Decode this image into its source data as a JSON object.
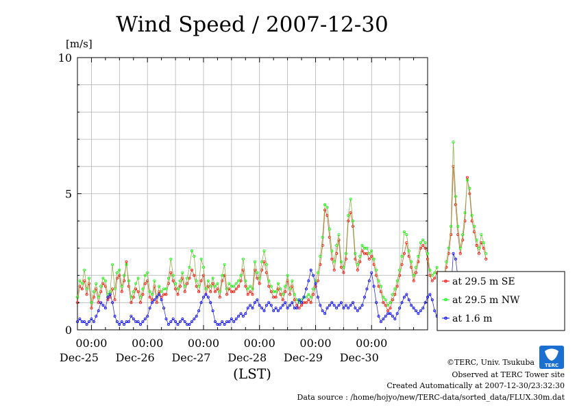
{
  "chart_data": {
    "type": "line",
    "title": "Wind Speed / 2007-12-30",
    "ylabel": "[m/s]",
    "xlabel": "(LST)",
    "ylim": [
      0,
      10
    ],
    "yticks": [
      "0",
      "5",
      "10"
    ],
    "x_ticks": [
      {
        "time": "00:00",
        "date": "Dec-25"
      },
      {
        "time": "00:00",
        "date": "Dec-26"
      },
      {
        "time": "00:00",
        "date": "Dec-27"
      },
      {
        "time": "00:00",
        "date": "Dec-28"
      },
      {
        "time": "00:00",
        "date": "Dec-29"
      },
      {
        "time": "00:00",
        "date": "Dec-30"
      }
    ],
    "x_range_days": [
      "Dec-24 18:00",
      "Dec-31 00:00"
    ],
    "legend_position": "right",
    "grid": true,
    "series": [
      {
        "name": "at 29.5 m SE",
        "color": "#ff0000",
        "marker": "open-circle",
        "x_start": "Dec-24 18:00",
        "step_hours": 1,
        "values": [
          1.0,
          1.6,
          1.5,
          1.8,
          1.3,
          1.7,
          0.8,
          1.2,
          1.5,
          1.0,
          1.4,
          1.7,
          1.6,
          1.1,
          1.2,
          1.5,
          1.1,
          1.9,
          2.0,
          1.4,
          1.8,
          2.5,
          1.6,
          1.0,
          1.2,
          1.5,
          1.4,
          1.0,
          1.3,
          1.7,
          1.8,
          1.2,
          1.1,
          1.6,
          1.0,
          1.4,
          1.2,
          1.3,
          1.3,
          1.7,
          2.1,
          1.8,
          1.5,
          1.3,
          1.6,
          1.9,
          1.4,
          1.7,
          1.9,
          2.2,
          2.0,
          1.6,
          1.4,
          1.8,
          2.0,
          1.3,
          1.6,
          1.4,
          1.7,
          1.4,
          1.5,
          1.2,
          1.8,
          2.0,
          1.3,
          1.5,
          1.4,
          1.4,
          1.5,
          1.6,
          1.8,
          2.2,
          1.6,
          1.3,
          1.4,
          1.3,
          2.2,
          1.9,
          1.7,
          2.2,
          2.5,
          2.1,
          1.6,
          1.4,
          1.2,
          1.2,
          1.5,
          1.3,
          1.1,
          1.4,
          1.8,
          1.3,
          1.6,
          1.1,
          0.9,
          0.8,
          0.9,
          1.0,
          1.0,
          1.1,
          1.0,
          1.3,
          1.6,
          1.8,
          2.4,
          3.1,
          4.4,
          4.2,
          3.4,
          2.6,
          2.2,
          2.8,
          3.3,
          2.3,
          2.1,
          2.6,
          4.0,
          4.3,
          3.8,
          2.6,
          2.2,
          2.5,
          2.9,
          2.8,
          2.8,
          2.6,
          2.7,
          2.4,
          2.0,
          1.6,
          1.4,
          1.0,
          0.9,
          0.7,
          0.8,
          1.1,
          1.3,
          1.6,
          2.0,
          2.4,
          2.8,
          3.2,
          2.7,
          2.3,
          1.8,
          2.1,
          2.5,
          3.0,
          3.1,
          3.0,
          2.6,
          2.0,
          1.8,
          1.9,
          2.1,
          1.5,
          1.3,
          1.8,
          2.3,
          2.8,
          3.5,
          6.0,
          4.6,
          3.5,
          2.8,
          3.3,
          4.0,
          5.6,
          5.0,
          4.0,
          3.6,
          3.1,
          2.8,
          3.2,
          3.0,
          2.6
        ]
      },
      {
        "name": "at 29.5 m NW",
        "color": "#00ff00",
        "marker": "open-circle",
        "x_start": "Dec-24 18:00",
        "step_hours": 1,
        "values": [
          1.2,
          1.8,
          1.7,
          2.2,
          1.5,
          1.9,
          1.0,
          1.4,
          1.7,
          1.2,
          1.6,
          1.9,
          1.8,
          1.3,
          1.4,
          2.4,
          1.5,
          2.1,
          2.2,
          1.6,
          2.0,
          2.4,
          1.8,
          1.2,
          1.4,
          1.7,
          1.9,
          1.2,
          1.5,
          2.0,
          2.1,
          1.4,
          1.3,
          1.8,
          1.2,
          1.6,
          1.4,
          1.5,
          1.5,
          1.9,
          2.6,
          2.0,
          1.7,
          1.5,
          1.8,
          2.1,
          1.6,
          1.9,
          2.3,
          2.9,
          2.7,
          1.8,
          1.6,
          2.6,
          2.3,
          1.5,
          1.8,
          1.6,
          1.9,
          1.6,
          1.7,
          1.4,
          2.0,
          2.4,
          1.5,
          1.7,
          1.6,
          1.6,
          1.7,
          1.8,
          2.0,
          2.6,
          1.8,
          1.5,
          1.6,
          1.5,
          2.5,
          2.1,
          1.9,
          2.5,
          2.9,
          2.4,
          1.8,
          1.6,
          1.4,
          1.4,
          1.7,
          1.5,
          1.3,
          1.6,
          2.0,
          1.5,
          1.8,
          1.3,
          1.1,
          1.0,
          1.1,
          1.2,
          1.2,
          1.3,
          1.2,
          1.5,
          1.8,
          2.1,
          2.7,
          3.4,
          4.6,
          4.5,
          3.7,
          2.9,
          2.5,
          3.1,
          3.5,
          2.5,
          2.3,
          2.8,
          4.2,
          4.8,
          4.0,
          2.8,
          2.4,
          2.7,
          3.1,
          3.0,
          3.0,
          2.8,
          2.9,
          2.6,
          2.2,
          1.8,
          1.6,
          1.2,
          1.1,
          0.9,
          1.0,
          1.3,
          1.5,
          1.8,
          2.2,
          2.7,
          3.6,
          3.5,
          2.9,
          2.5,
          2.0,
          2.3,
          2.7,
          3.2,
          3.3,
          3.2,
          2.8,
          2.2,
          2.0,
          2.1,
          2.3,
          1.7,
          1.5,
          2.0,
          2.5,
          3.0,
          3.8,
          6.9,
          4.9,
          3.8,
          3.0,
          3.5,
          4.3,
          5.5,
          5.2,
          4.2,
          3.8,
          3.3,
          3.0,
          3.5,
          3.2,
          2.8
        ]
      },
      {
        "name": "at 1.6 m",
        "color": "#0000ff",
        "marker": "open-circle",
        "x_start": "Dec-24 18:00",
        "step_hours": 1,
        "values": [
          0.3,
          0.4,
          0.3,
          0.3,
          0.2,
          0.3,
          0.4,
          0.3,
          0.5,
          0.7,
          1.0,
          0.9,
          0.8,
          1.2,
          1.3,
          1.0,
          0.5,
          0.3,
          0.2,
          0.3,
          0.2,
          0.3,
          0.3,
          0.5,
          0.4,
          0.3,
          0.3,
          0.2,
          0.3,
          0.4,
          0.5,
          0.8,
          1.0,
          1.1,
          1.2,
          1.3,
          1.1,
          0.8,
          0.4,
          0.2,
          0.3,
          0.4,
          0.3,
          0.2,
          0.3,
          0.4,
          0.3,
          0.2,
          0.2,
          0.3,
          0.4,
          0.5,
          0.7,
          1.0,
          1.2,
          1.3,
          1.2,
          1.0,
          0.7,
          0.3,
          0.2,
          0.2,
          0.3,
          0.2,
          0.3,
          0.3,
          0.4,
          0.3,
          0.4,
          0.5,
          0.6,
          0.5,
          0.6,
          0.8,
          0.9,
          0.8,
          1.0,
          1.1,
          0.9,
          0.8,
          0.7,
          0.9,
          1.0,
          0.9,
          0.7,
          0.8,
          0.7,
          0.8,
          0.9,
          1.0,
          0.8,
          0.9,
          1.0,
          0.8,
          0.8,
          1.1,
          1.0,
          1.2,
          1.5,
          1.8,
          2.2,
          2.0,
          1.7,
          1.2,
          0.9,
          0.7,
          0.6,
          0.8,
          0.9,
          1.0,
          0.9,
          0.8,
          0.9,
          1.0,
          0.8,
          0.9,
          0.8,
          0.9,
          1.0,
          0.8,
          0.7,
          0.8,
          0.9,
          1.2,
          1.5,
          1.8,
          2.1,
          1.6,
          1.0,
          0.5,
          0.3,
          0.4,
          0.5,
          0.6,
          0.6,
          0.5,
          0.4,
          0.6,
          0.8,
          1.0,
          1.2,
          1.3,
          1.1,
          0.9,
          0.8,
          0.7,
          0.6,
          0.7,
          0.8,
          1.0,
          1.2,
          1.3,
          1.1,
          0.7,
          0.5,
          0.6,
          0.7,
          0.5,
          0.4,
          1.0,
          1.5,
          2.8,
          2.6,
          1.9,
          1.1,
          1.0,
          0.9,
          1.1,
          1.4,
          1.6,
          1.0,
          0.6,
          0.4,
          0.5,
          0.3
        ]
      }
    ]
  },
  "footer": {
    "copyright": "©TERC, Univ. Tsukuba",
    "observed": "Observed at TERC Tower site",
    "created": "Created Automatically at 2007-12-30/23:32:30",
    "source": "Data source : /home/hojyo/new/TERC-data/sorted_data/FLUX.30m.dat"
  },
  "logo": {
    "text": "TERC"
  }
}
